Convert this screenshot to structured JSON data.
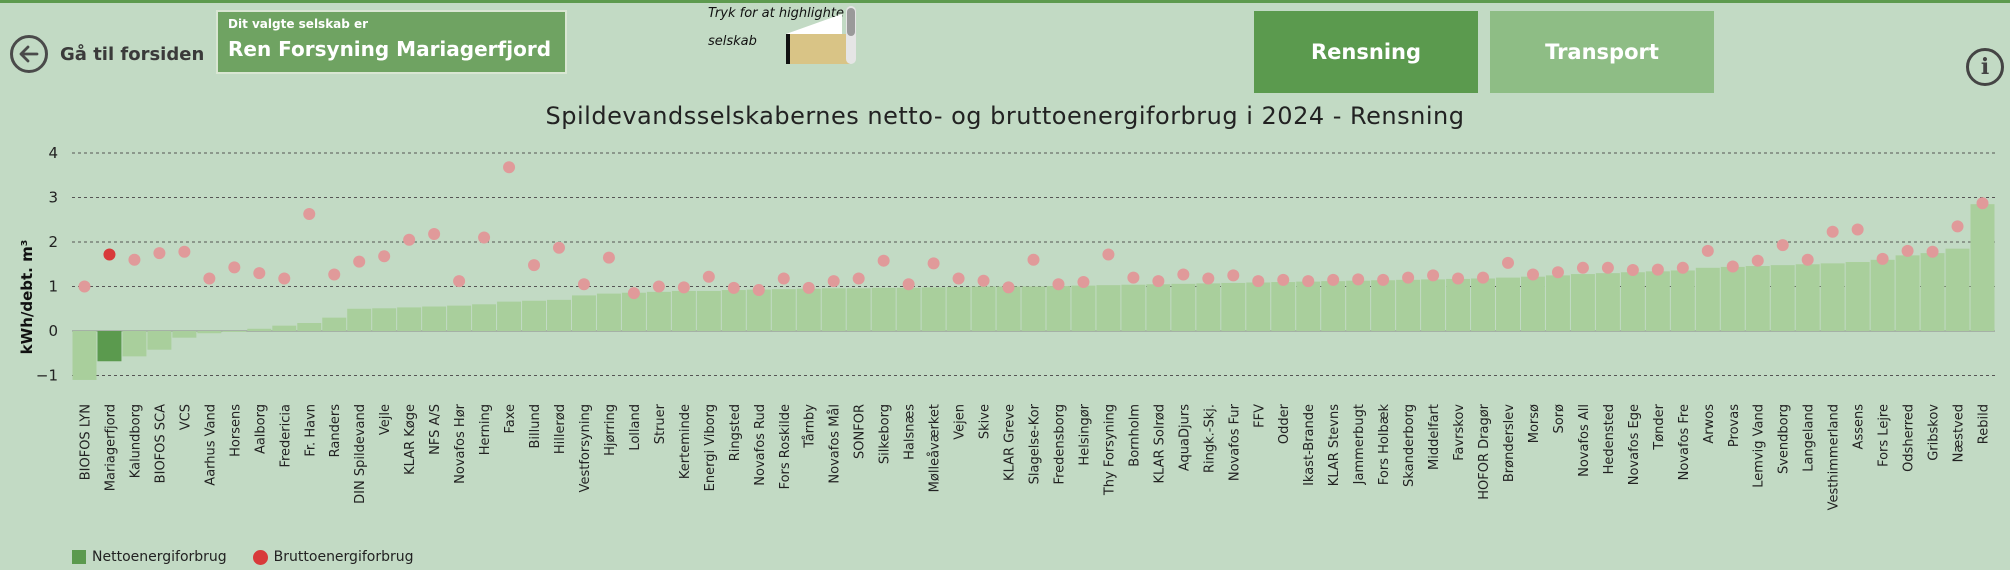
{
  "nav": {
    "back_label": "Gå til forsiden",
    "back_icon": "arrow-left-icon",
    "info_icon": "info-icon",
    "info_symbol": "i"
  },
  "company_select": {
    "caption": "Dit valgte selskab er",
    "value": "Ren Forsyning Mariagerfjord"
  },
  "highlight": {
    "text_line1": "Tryk for at highlighte",
    "text_line2": "selskab",
    "swatch_color": "#d9c486"
  },
  "buttons": {
    "rensning": "Rensning",
    "transport": "Transport",
    "active": "rensning"
  },
  "colors": {
    "net_bar": "#a9cf9c",
    "net_bar_selected": "#5b9a4e",
    "gross_dot": "#e09a9a",
    "gross_dot_selected": "#d83a3a",
    "background": "#c2dac4"
  },
  "legend": {
    "net": "Nettoenergiforbrug",
    "gross": "Bruttoenergiforbrug"
  },
  "chart_data": {
    "type": "bar",
    "title": "Spildevandsselskabernes netto- og bruttoenergiforbrug i 2024 - Rensning",
    "ylabel": "kWh/debt. m³",
    "xlabel": "",
    "ylim": [
      -1.5,
      4
    ],
    "yticks": [
      -1,
      0,
      1,
      2,
      3,
      4
    ],
    "grid": true,
    "legend_position": "bottom-left",
    "selected_category": "Mariagerfjord",
    "categories": [
      "BIOFOS LYN",
      "Mariagerfjord",
      "Kalundborg",
      "BIOFOS SCA",
      "VCS",
      "Aarhus Vand",
      "Horsens",
      "Aalborg",
      "Fredericia",
      "Fr. Havn",
      "Randers",
      "DIN Spildevand",
      "Vejle",
      "KLAR Køge",
      "NFS A/S",
      "Novafos Hør",
      "Herning",
      "Faxe",
      "Billund",
      "Hillerød",
      "Vestforsyning",
      "Hjørring",
      "Lolland",
      "Struer",
      "Kerteminde",
      "Energi Viborg",
      "Ringsted",
      "Novafos Rud",
      "Fors Roskilde",
      "Tårnby",
      "Novafos Mål",
      "SONFOR",
      "Silkeborg",
      "Halsnæs",
      "Mølleåværket",
      "Vejen",
      "Skive",
      "KLAR Greve",
      "Slagelse-Kor",
      "Fredensborg",
      "Helsingør",
      "Thy Forsyning",
      "Bornholm",
      "KLAR Solrød",
      "AquaDjurs",
      "Ringk.-Skj.",
      "Novafos Fur",
      "FFV",
      "Odder",
      "Ikast-Brande",
      "KLAR Stevns",
      "Jammerbugt",
      "Fors Holbæk",
      "Skanderborg",
      "Middelfart",
      "Favrskov",
      "HOFOR Dragør",
      "Brønderslev",
      "Morsø",
      "Sorø",
      "Novafos All",
      "Hedensted",
      "Novafos Ege",
      "Tønder",
      "Novafos Fre",
      "Arwos",
      "Provas",
      "Lemvig Vand",
      "Svendborg",
      "Langeland",
      "Vesthimmerland",
      "Assens",
      "Fors Lejre",
      "Odsherred",
      "Gribskov",
      "Næstved",
      "Rebild"
    ],
    "series": [
      {
        "name": "Nettoenergiforbrug",
        "type": "bar",
        "values": [
          -1.1,
          -0.68,
          -0.57,
          -0.42,
          -0.15,
          -0.05,
          -0.02,
          0.05,
          0.12,
          0.18,
          0.3,
          0.5,
          0.51,
          0.53,
          0.55,
          0.57,
          0.6,
          0.66,
          0.68,
          0.7,
          0.8,
          0.84,
          0.86,
          0.88,
          0.9,
          0.9,
          0.92,
          0.93,
          0.94,
          0.95,
          0.96,
          0.96,
          0.97,
          0.97,
          0.98,
          0.99,
          1.0,
          1.0,
          1.0,
          1.01,
          1.02,
          1.03,
          1.04,
          1.05,
          1.06,
          1.07,
          1.08,
          1.09,
          1.1,
          1.11,
          1.12,
          1.13,
          1.14,
          1.15,
          1.16,
          1.17,
          1.18,
          1.2,
          1.22,
          1.25,
          1.28,
          1.3,
          1.32,
          1.34,
          1.36,
          1.42,
          1.44,
          1.46,
          1.48,
          1.5,
          1.52,
          1.55,
          1.6,
          1.7,
          1.75,
          1.85,
          2.85
        ]
      },
      {
        "name": "Bruttoenergiforbrug",
        "type": "scatter",
        "values": [
          1.0,
          1.72,
          1.6,
          1.75,
          1.78,
          1.18,
          1.43,
          1.3,
          1.18,
          2.63,
          1.27,
          1.56,
          1.68,
          2.05,
          2.18,
          1.12,
          2.1,
          3.68,
          1.48,
          1.87,
          1.05,
          1.65,
          0.85,
          1.0,
          0.98,
          1.22,
          0.97,
          0.92,
          1.18,
          0.97,
          1.12,
          1.18,
          1.58,
          1.05,
          1.52,
          1.18,
          1.13,
          0.98,
          1.6,
          1.05,
          1.1,
          1.72,
          1.2,
          1.12,
          1.27,
          1.18,
          1.25,
          1.12,
          1.15,
          1.12,
          1.15,
          1.16,
          1.15,
          1.2,
          1.25,
          1.18,
          1.2,
          1.53,
          1.27,
          1.32,
          1.42,
          1.42,
          1.37,
          1.38,
          1.42,
          1.8,
          1.45,
          1.58,
          1.93,
          1.6,
          2.23,
          2.28,
          1.62,
          1.8,
          1.78,
          2.35,
          2.87
        ]
      }
    ]
  }
}
